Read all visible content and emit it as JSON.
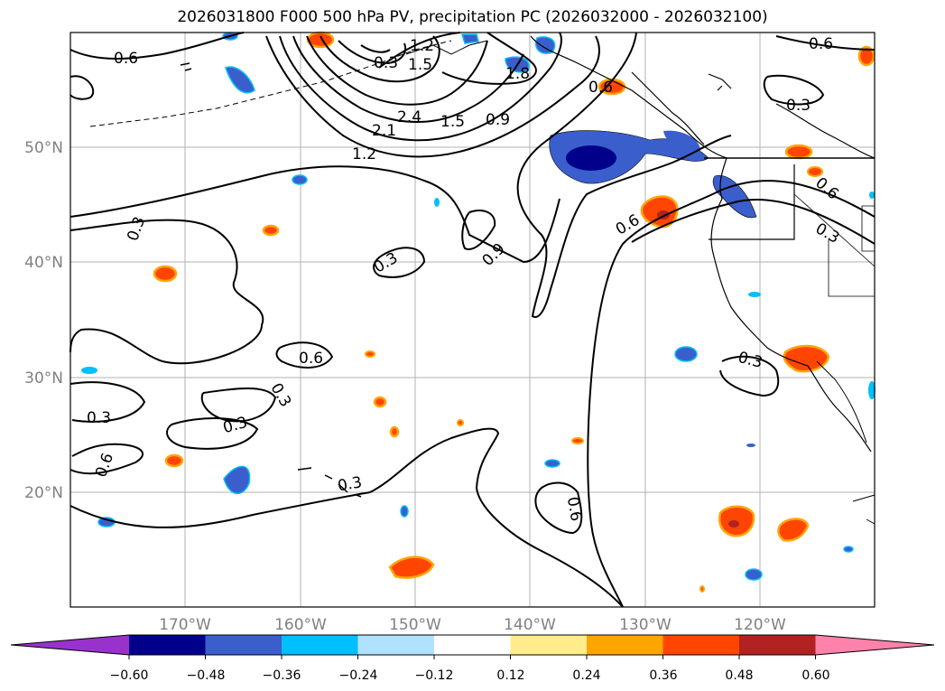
{
  "title": "2026031800 F000 500 hPa PV, precipitation PC (2026032000 - 2026032100)",
  "map": {
    "lat_labels": [
      "50°N",
      "40°N",
      "30°N",
      "20°N"
    ],
    "lon_labels": [
      "170°W",
      "160°W",
      "150°W",
      "140°W",
      "130°W",
      "120°W"
    ],
    "contour_labels": [
      "0.6",
      "1.2",
      "1.5",
      "1.8",
      "2.4",
      "2.1",
      "1.5",
      "0.9",
      "1.2",
      "0.3",
      "0.3",
      "0.9",
      "0.6",
      "0.3",
      "0.6",
      "0.3",
      "0.3",
      "0.3",
      "0.3",
      "0.6",
      "0.3",
      "0.6",
      "0.6",
      "0.6",
      "0.3",
      "0.6",
      "0.3"
    ]
  },
  "colorbar": {
    "ticks": [
      "−0.60",
      "−0.48",
      "−0.36",
      "−0.24",
      "−0.12",
      "0.12",
      "0.24",
      "0.36",
      "0.48",
      "0.60"
    ],
    "colors": [
      "#9932cc",
      "#00008b",
      "#3a5fcd",
      "#00bfff",
      "#b0e2ff",
      "#ffffff",
      "#ffec8b",
      "#ffa500",
      "#ff4500",
      "#b22222",
      "#ff82ab"
    ]
  }
}
